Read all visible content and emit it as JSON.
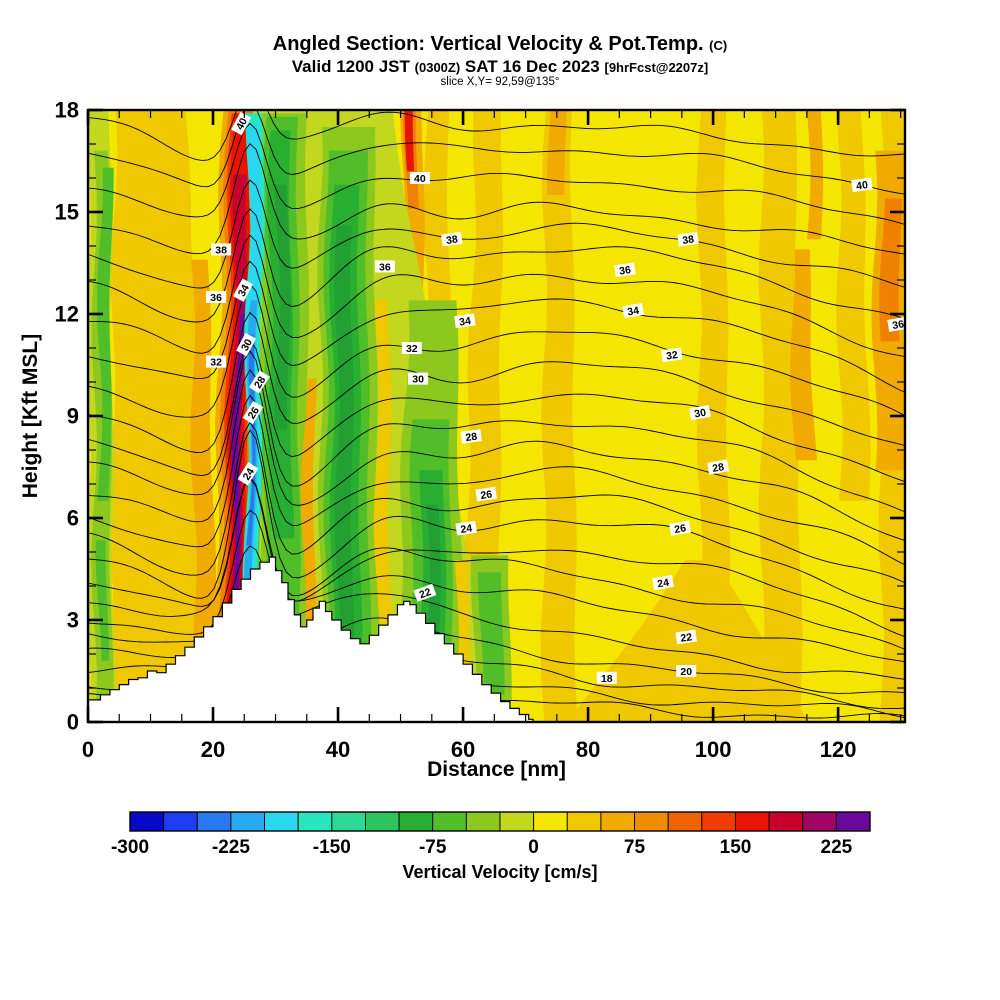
{
  "header": {
    "title": "Angled Section: Vertical Velocity & Pot.Temp.",
    "title_suffix": "(C)",
    "subtitle_prefix": "Valid 1200 JST",
    "subtitle_small1": "(0300Z)",
    "subtitle_mid": "SAT 16 Dec 2023",
    "subtitle_small2": "[9hrFcst@2207z]",
    "slice_note": "slice X,Y= 92,59@135°"
  },
  "axes": {
    "y": {
      "title": "Height [Kft MSL]",
      "ticks": [
        0,
        3,
        6,
        9,
        12,
        15,
        18
      ],
      "minor_step": 1,
      "range": [
        0,
        18
      ]
    },
    "x": {
      "title": "Distance [nm]",
      "ticks": [
        0,
        20,
        40,
        60,
        80,
        100,
        120
      ],
      "minor_step": 5,
      "range": [
        0,
        130.7
      ]
    }
  },
  "colorbar": {
    "caption": "Vertical Velocity [cm/s]",
    "tick_labels": [
      "-300",
      "-225",
      "-150",
      "-75",
      "0",
      "75",
      "150",
      "225"
    ],
    "min": -300,
    "max": 250,
    "step": 25,
    "colors": [
      "#0808C8",
      "#1E3CF0",
      "#2878F0",
      "#28AAF0",
      "#28D7F0",
      "#28E6BE",
      "#2DD796",
      "#2DC35F",
      "#28AF32",
      "#50BE28",
      "#8CC81E",
      "#C3D71E",
      "#F5E600",
      "#F0C800",
      "#F0AA00",
      "#F08C00",
      "#F06400",
      "#F03C00",
      "#E61400",
      "#C8002D",
      "#A00564",
      "#69089B"
    ]
  },
  "chart_data": {
    "type": "heatmap",
    "title": "Angled Section: Vertical Velocity & Pot.Temp. (C)",
    "xlabel": "Distance [nm]",
    "ylabel": "Height [Kft MSL]",
    "x_range_nm": [
      0,
      130.7
    ],
    "y_range_kft": [
      0,
      18
    ],
    "shaded_variable": "Vertical Velocity [cm/s]",
    "shaded_range": [
      -300,
      250
    ],
    "contour_variable": "Potential Temperature (C)",
    "contour_interval": 1,
    "contour_labeled_levels": [
      18,
      20,
      22,
      24,
      26,
      28,
      30,
      32,
      34,
      36,
      38,
      40
    ],
    "features": [
      {
        "name": "strong mountain-wave updraft",
        "location_nm": [
          20,
          25
        ],
        "extent_kft": [
          5,
          18
        ],
        "value_cm_s": "150 to 250 (red core with purple maximum 6-12 Kft)"
      },
      {
        "name": "narrow lee downdraft",
        "location_nm": [
          25,
          28
        ],
        "extent_kft": [
          4,
          18
        ],
        "value_cm_s": "-150 to -225 (cyan band with blue core 5-12 Kft)"
      },
      {
        "name": "broad downdraft region",
        "location_nm": [
          28,
          65
        ],
        "value_cm_s": "-25 to -125 (green bands, dark-green cores near 41 and 55 nm)"
      },
      {
        "name": "weak left-edge downdraft streaks",
        "location_nm": [
          0,
          4
        ],
        "value_cm_s": "-25 to -75"
      },
      {
        "name": "secondary updraft streak",
        "location_nm": [
          51,
          53
        ],
        "extent_kft": [
          14,
          18
        ],
        "value_cm_s": "75 to 175"
      },
      {
        "name": "right-edge updraft",
        "location_nm": [
          125,
          131
        ],
        "extent_kft": [
          7,
          17
        ],
        "value_cm_s": "75 to 125"
      },
      {
        "name": "background field",
        "value_cm_s": "0 to 50 (yellow with gold streaks)"
      },
      {
        "name": "terrain",
        "description": "white stepped mountain profile; main peak ~4.9 Kft near 29 nm, secondary peak ~3.6 Kft near 50 nm, descending to sea level near 71 nm"
      }
    ],
    "terrain_profile_nm_kft": [
      [
        0,
        0.65
      ],
      [
        2,
        0.8
      ],
      [
        3.5,
        0.95
      ],
      [
        5,
        1.1
      ],
      [
        6.5,
        1.25
      ],
      [
        8,
        1.3
      ],
      [
        9.5,
        1.5
      ],
      [
        11,
        1.45
      ],
      [
        12.5,
        1.7
      ],
      [
        14,
        1.95
      ],
      [
        15.5,
        2.2
      ],
      [
        17,
        2.5
      ],
      [
        18.5,
        2.8
      ],
      [
        20,
        3.1
      ],
      [
        21.5,
        3.5
      ],
      [
        23,
        3.9
      ],
      [
        24.5,
        4.2
      ],
      [
        26,
        4.5
      ],
      [
        27.5,
        4.7
      ],
      [
        29,
        4.85
      ],
      [
        30,
        4.45
      ],
      [
        31,
        4.1
      ],
      [
        32,
        3.6
      ],
      [
        33,
        3.15
      ],
      [
        34,
        2.8
      ],
      [
        35,
        3.0
      ],
      [
        36,
        3.35
      ],
      [
        37,
        3.55
      ],
      [
        38,
        3.25
      ],
      [
        39,
        3.0
      ],
      [
        40.5,
        2.7
      ],
      [
        42,
        2.45
      ],
      [
        43.5,
        2.3
      ],
      [
        45,
        2.55
      ],
      [
        46.5,
        2.85
      ],
      [
        48,
        3.15
      ],
      [
        49.5,
        3.45
      ],
      [
        50.5,
        3.55
      ],
      [
        51.5,
        3.45
      ],
      [
        52.5,
        3.2
      ],
      [
        54,
        2.9
      ],
      [
        55.5,
        2.6
      ],
      [
        57,
        2.3
      ],
      [
        58.5,
        2.0
      ],
      [
        60,
        1.7
      ],
      [
        61.5,
        1.4
      ],
      [
        63,
        1.1
      ],
      [
        64.5,
        0.85
      ],
      [
        66,
        0.6
      ],
      [
        67.5,
        0.4
      ],
      [
        69,
        0.22
      ],
      [
        70.5,
        0.08
      ],
      [
        71.2,
        0
      ]
    ],
    "contours_level_leftkft_rightkft": [
      [
        41,
        17.79,
        16.59
      ],
      [
        40,
        16.76,
        15.65
      ],
      [
        39,
        15.79,
        14.68
      ],
      [
        38,
        14.82,
        13.71
      ],
      [
        37,
        13.82,
        12.71
      ],
      [
        36,
        12.85,
        11.71
      ],
      [
        35,
        11.88,
        10.76
      ],
      [
        34,
        10.94,
        9.82
      ],
      [
        33,
        9.97,
        8.88
      ],
      [
        32,
        9.12,
        7.94
      ],
      [
        31,
        8.29,
        7.06
      ],
      [
        30,
        7.65,
        6.18
      ],
      [
        29,
        6.91,
        5.35
      ],
      [
        28,
        6.18,
        4.59
      ],
      [
        27,
        5.5,
        3.88
      ],
      [
        26,
        4.82,
        3.24
      ],
      [
        25,
        4.18,
        2.65
      ],
      [
        24,
        3.56,
        2.12
      ],
      [
        23,
        3.0,
        1.65
      ],
      [
        22,
        2.47,
        1.21
      ],
      [
        21,
        1.97,
        0.82
      ],
      [
        20,
        1.53,
        0.5
      ],
      [
        19,
        1.15,
        0.24
      ],
      [
        18,
        0.79,
        0.03
      ]
    ],
    "contour_labels_level_nm_kft_rot": [
      [
        40,
        24.5,
        17.6,
        -62
      ],
      [
        40,
        53.1,
        16.0,
        0
      ],
      [
        40,
        123.8,
        15.8,
        -8
      ],
      [
        38,
        21.3,
        13.9,
        0
      ],
      [
        38,
        58.2,
        14.2,
        -8
      ],
      [
        38,
        96.0,
        14.2,
        -8
      ],
      [
        36,
        20.5,
        12.5,
        0
      ],
      [
        36,
        47.5,
        13.4,
        0
      ],
      [
        36,
        85.9,
        13.3,
        -8
      ],
      [
        36,
        129.6,
        11.7,
        -10
      ],
      [
        34,
        24.8,
        12.7,
        -62
      ],
      [
        34,
        60.3,
        11.8,
        -8
      ],
      [
        34,
        87.2,
        12.1,
        -10
      ],
      [
        32,
        20.5,
        10.6,
        0
      ],
      [
        32,
        51.8,
        11.0,
        0
      ],
      [
        32,
        93.4,
        10.8,
        -8
      ],
      [
        30,
        25.3,
        11.1,
        -62
      ],
      [
        30,
        52.8,
        10.1,
        0
      ],
      [
        30,
        97.9,
        9.1,
        -10
      ],
      [
        28,
        27.4,
        10.0,
        -58
      ],
      [
        28,
        61.3,
        8.4,
        -8
      ],
      [
        28,
        100.8,
        7.5,
        -10
      ],
      [
        26,
        26.4,
        9.1,
        -58
      ],
      [
        26,
        63.7,
        6.7,
        -8
      ],
      [
        26,
        94.7,
        5.7,
        -10
      ],
      [
        24,
        25.6,
        7.3,
        -58
      ],
      [
        24,
        60.5,
        5.7,
        -8
      ],
      [
        24,
        92.0,
        4.1,
        -10
      ],
      [
        22,
        53.9,
        3.8,
        -20
      ],
      [
        22,
        95.7,
        2.5,
        -8
      ],
      [
        20,
        95.7,
        1.5,
        0
      ],
      [
        18,
        83.0,
        1.3,
        0
      ]
    ],
    "shading_bands_cxtop_cxbot_wtop_wbot_kfttop_kftbot_color": [
      [
        9.9,
        12.3,
        11.2,
        17.6,
        18,
        0,
        "#F0C800"
      ],
      [
        55.8,
        56.3,
        3.5,
        4.2,
        18,
        0,
        "#F0C800"
      ],
      [
        64.2,
        62.7,
        4.2,
        5.8,
        18,
        0,
        "#F0C800"
      ],
      [
        75.2,
        75.5,
        4.2,
        5.4,
        18,
        0,
        "#F0C800"
      ],
      [
        97.9,
        96.3,
        4.8,
        38.4,
        4.76,
        0,
        "#F0C800"
      ],
      [
        99.8,
        100.3,
        4.2,
        4.8,
        18,
        0,
        "#F0C800"
      ],
      [
        110.4,
        111.0,
        5.4,
        6.4,
        18,
        0,
        "#F0C800"
      ],
      [
        121.9,
        122.7,
        3.8,
        4.8,
        18,
        6.5,
        "#F0C800"
      ],
      [
        128.8,
        128.8,
        3.8,
        3.8,
        18,
        0,
        "#F0C800"
      ],
      [
        17.9,
        18.9,
        2.6,
        3.5,
        13.6,
        0.65,
        "#F0AA00"
      ],
      [
        52.0,
        52.0,
        3.2,
        3.2,
        18,
        4.2,
        "#F0AA00"
      ],
      [
        75.2,
        75.2,
        2.6,
        2.6,
        18,
        15.5,
        "#F0AA00"
      ],
      [
        116.2,
        116.2,
        2.2,
        2.2,
        18,
        14.2,
        "#F0AA00"
      ],
      [
        113.9,
        114.7,
        2.6,
        3.5,
        13.9,
        7.7,
        "#F0AA00"
      ],
      [
        128.2,
        128.2,
        4.8,
        4.8,
        16.8,
        7.4,
        "#F0AA00"
      ],
      [
        51.8,
        51.8,
        1.8,
        1.8,
        18,
        15.1,
        "#F08000"
      ],
      [
        128.5,
        128.5,
        2.9,
        2.9,
        15.4,
        11.2,
        "#F08000"
      ],
      [
        51.7,
        51.7,
        1.1,
        1.1,
        18,
        16.2,
        "#E61400"
      ],
      [
        1.8,
        2.1,
        3.5,
        4.2,
        18,
        0,
        "#C3D71E"
      ],
      [
        2.1,
        2.4,
        2.2,
        2.9,
        16.8,
        0.2,
        "#8CC81E"
      ],
      [
        2.9,
        2.6,
        1.9,
        1.6,
        16.3,
        6.5,
        "#50BE28"
      ],
      [
        2.4,
        2.4,
        1.4,
        1.4,
        5.35,
        1.8,
        "#50BE28"
      ],
      [
        24.8,
        23.0,
        6.7,
        5.4,
        18,
        1.8,
        "#F0AA00"
      ],
      [
        24.8,
        23.2,
        5.1,
        4.2,
        18,
        2.1,
        "#F08000"
      ],
      [
        24.8,
        23.4,
        4.0,
        3.2,
        17.9,
        2.3,
        "#F03C00"
      ],
      [
        24.8,
        23.4,
        3.0,
        2.4,
        17.9,
        2.4,
        "#E61400"
      ],
      [
        24.6,
        23.4,
        1.9,
        1.6,
        16.1,
        2.6,
        "#C8002D"
      ],
      [
        24.5,
        23.4,
        1.3,
        1.1,
        13.0,
        2.8,
        "#A00564"
      ],
      [
        24.3,
        23.4,
        0.8,
        0.8,
        12.0,
        3.4,
        "#69089B"
      ],
      [
        37.4,
        45.4,
        22.4,
        37.8,
        18,
        0.65,
        "#C3D71E"
      ],
      [
        31.2,
        31.4,
        7.4,
        8.3,
        17.9,
        0.9,
        "#8CC81E"
      ],
      [
        41.4,
        41.9,
        8.6,
        9.3,
        17.5,
        0.9,
        "#8CC81E"
      ],
      [
        55.0,
        54.7,
        7.7,
        10.6,
        12.4,
        0.9,
        "#8CC81E"
      ],
      [
        64.6,
        64.6,
        5.8,
        5.8,
        4.9,
        0.65,
        "#8CC81E"
      ],
      [
        30.9,
        31.0,
        5.1,
        5.8,
        17.8,
        1.2,
        "#50BE28"
      ],
      [
        41.3,
        41.6,
        6.4,
        7.0,
        16.8,
        1.2,
        "#50BE28"
      ],
      [
        55.0,
        54.7,
        5.8,
        7.0,
        8.9,
        1.1,
        "#50BE28"
      ],
      [
        64.6,
        64.6,
        3.5,
        3.5,
        4.4,
        0.8,
        "#50BE28"
      ],
      [
        30.7,
        31.0,
        3.2,
        3.5,
        17.4,
        5.4,
        "#28AF32"
      ],
      [
        41.1,
        41.4,
        4.2,
        4.5,
        15.8,
        1.7,
        "#28AF32"
      ],
      [
        55.2,
        55.0,
        3.5,
        4.2,
        7.4,
        1.5,
        "#28AF32"
      ],
      [
        31.2,
        31.2,
        1.8,
        1.8,
        15.8,
        8.6,
        "#23A032"
      ],
      [
        41.0,
        41.1,
        2.4,
        2.4,
        14.6,
        2.1,
        "#23A032"
      ],
      [
        55.2,
        55.2,
        1.9,
        1.9,
        6.4,
        1.8,
        "#23A032"
      ],
      [
        35.5,
        35.2,
        1.6,
        1.9,
        10.1,
        0.9,
        "#F0AA00"
      ],
      [
        47.2,
        47.2,
        1.9,
        2.2,
        12.4,
        0.65,
        "#F0C800"
      ],
      [
        59.8,
        59.8,
        1.9,
        1.9,
        4.76,
        0.65,
        "#F0C800"
      ],
      [
        27.0,
        26.7,
        1.9,
        1.6,
        17.6,
        2.1,
        "#2DC35F"
      ],
      [
        26.9,
        26.2,
        2.6,
        2.1,
        17.9,
        2.2,
        "#28E6BE"
      ],
      [
        26.7,
        26.1,
        1.8,
        1.4,
        17.6,
        2.9,
        "#28D7F0"
      ],
      [
        26.6,
        25.9,
        1.1,
        1.0,
        12.4,
        4.0,
        "#28AAF0"
      ],
      [
        26.6,
        25.9,
        0.64,
        0.64,
        11.4,
        5.2,
        "#2878F0"
      ]
    ],
    "base_color": "#F5E600",
    "terrain_color": "#FFFFFF",
    "grid": false,
    "legend_position": "bottom colorbar"
  }
}
